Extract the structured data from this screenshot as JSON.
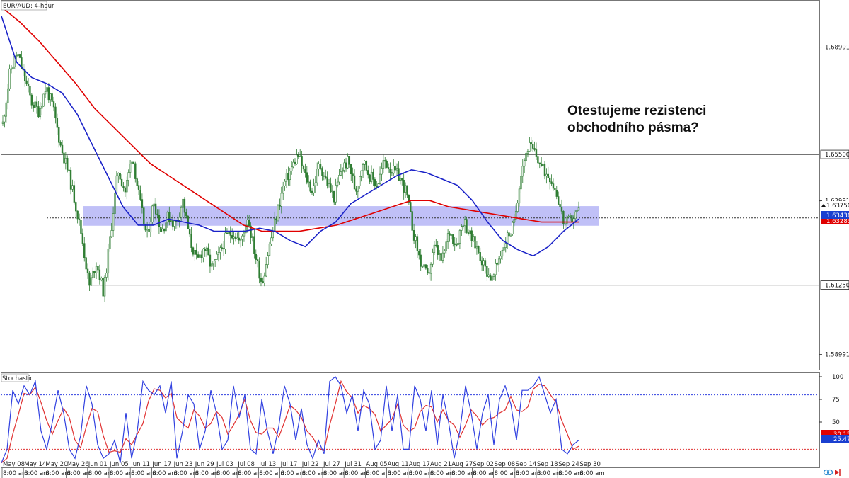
{
  "window": {
    "symbol_label": "EUR/AUD: 4-hour",
    "subwindow_label": "Stochastic"
  },
  "annotation": {
    "line1": "Otestujeme rezistenci",
    "line2": "obchodního pásma?"
  },
  "colors": {
    "candle": "#2e7d32",
    "ma_fast": "#1a22c8",
    "ma_slow": "#e00000",
    "range_zone": "#8c8cf0",
    "stoch_main": "#3040e0",
    "stoch_signal": "#e03030",
    "level_line": "#222222"
  },
  "chart_data": [
    {
      "type": "candlestick",
      "title": "EUR/AUD: 4-hour",
      "y_ticks": [
        "1.68991",
        "1.63991",
        "1.58991"
      ],
      "ylim": [
        1.585,
        1.705
      ],
      "levels": [
        {
          "label": "1.65500",
          "value": 1.655
        },
        {
          "label": "1.61250",
          "value": 1.6125
        }
      ],
      "price_tags": [
        {
          "label": "1.63750",
          "value": 1.6375,
          "style": "ask"
        },
        {
          "label": "1.63436",
          "value": 1.63436,
          "style": "blue"
        },
        {
          "label": "1.63283",
          "value": 1.63283,
          "style": "red"
        }
      ],
      "range_zone": {
        "low": 1.6325,
        "high": 1.6375
      },
      "x_labels": [
        "May 08",
        "May 14",
        "May 20",
        "May 26",
        "Jun 01",
        "Jun 05",
        "Jun 11",
        "Jun 17",
        "Jun 23",
        "Jun 29",
        "Jul 03",
        "Jul 08",
        "Jul 13",
        "Jul 17",
        "Jul 22",
        "Jul 27",
        "Jul 31",
        "Aug 05",
        "Aug 11",
        "Aug 17",
        "Aug 21",
        "Aug 27",
        "Sep 02",
        "Sep 08",
        "Sep 14",
        "Sep 18",
        "Sep 24",
        "Sep 30"
      ],
      "x_time_label": "8:00 am",
      "price_path": [
        1.665,
        1.682,
        1.688,
        1.68,
        1.672,
        1.669,
        1.677,
        1.67,
        1.658,
        1.65,
        1.64,
        1.628,
        1.612,
        1.62,
        1.61,
        1.63,
        1.65,
        1.643,
        1.655,
        1.64,
        1.628,
        1.64,
        1.63,
        1.635,
        1.632,
        1.64,
        1.627,
        1.62,
        1.625,
        1.618,
        1.622,
        1.628,
        1.63,
        1.626,
        1.635,
        1.623,
        1.613,
        1.625,
        1.635,
        1.645,
        1.65,
        1.655,
        1.648,
        1.643,
        1.652,
        1.646,
        1.641,
        1.65,
        1.653,
        1.643,
        1.653,
        1.648,
        1.645,
        1.653,
        1.65,
        1.648,
        1.643,
        1.63,
        1.62,
        1.615,
        1.625,
        1.62,
        1.63,
        1.626,
        1.634,
        1.628,
        1.624,
        1.618,
        1.614,
        1.622,
        1.628,
        1.632,
        1.65,
        1.658,
        1.655,
        1.65,
        1.648,
        1.642,
        1.632,
        1.634,
        1.637
      ],
      "ma_fast_values": [
        1.7,
        1.685,
        1.68,
        1.678,
        1.675,
        1.668,
        1.658,
        1.648,
        1.638,
        1.632,
        1.632,
        1.634,
        1.633,
        1.632,
        1.63,
        1.63,
        1.63,
        1.631,
        1.63,
        1.627,
        1.625,
        1.63,
        1.633,
        1.639,
        1.642,
        1.645,
        1.648,
        1.65,
        1.649,
        1.647,
        1.645,
        1.64,
        1.633,
        1.627,
        1.624,
        1.622,
        1.625,
        1.63,
        1.634
      ],
      "ma_slow_values": [
        1.703,
        1.698,
        1.692,
        1.685,
        1.678,
        1.67,
        1.664,
        1.658,
        1.652,
        1.648,
        1.644,
        1.64,
        1.636,
        1.632,
        1.63,
        1.63,
        1.63,
        1.631,
        1.632,
        1.634,
        1.636,
        1.638,
        1.64,
        1.64,
        1.638,
        1.637,
        1.636,
        1.635,
        1.634,
        1.633,
        1.633,
        1.633
      ]
    },
    {
      "type": "line",
      "title": "Stochastic",
      "ylim": [
        0,
        100
      ],
      "y_ticks": [
        "100",
        "75",
        "50"
      ],
      "levels": [
        80,
        20
      ],
      "value_tags": [
        {
          "label": "30.15",
          "value": 30.15,
          "style": "red"
        },
        {
          "label": "25.47",
          "value": 25.47,
          "style": "blue"
        }
      ],
      "series": [
        {
          "values": [
            5,
            20,
            85,
            70,
            90,
            80,
            95,
            40,
            20,
            50,
            85,
            60,
            20,
            10,
            35,
            90,
            70,
            25,
            10,
            15,
            30,
            5,
            60,
            10,
            40,
            95,
            85,
            80,
            90,
            60,
            95,
            10,
            40,
            80,
            70,
            20,
            40,
            85,
            60,
            20,
            30,
            90,
            55,
            80,
            20,
            15,
            75,
            40,
            15,
            45,
            90,
            70,
            30,
            65,
            25,
            10,
            30,
            15,
            95,
            100,
            90,
            60,
            80,
            40,
            85,
            70,
            20,
            30,
            90,
            40,
            80,
            20,
            20,
            90,
            75,
            40,
            85,
            25,
            80,
            50,
            10,
            40,
            90,
            60,
            20,
            60,
            80,
            25,
            75,
            90,
            70,
            30,
            85,
            85,
            90,
            100,
            80,
            60,
            75,
            20,
            15,
            25,
            30
          ]
        }
      ]
    }
  ]
}
